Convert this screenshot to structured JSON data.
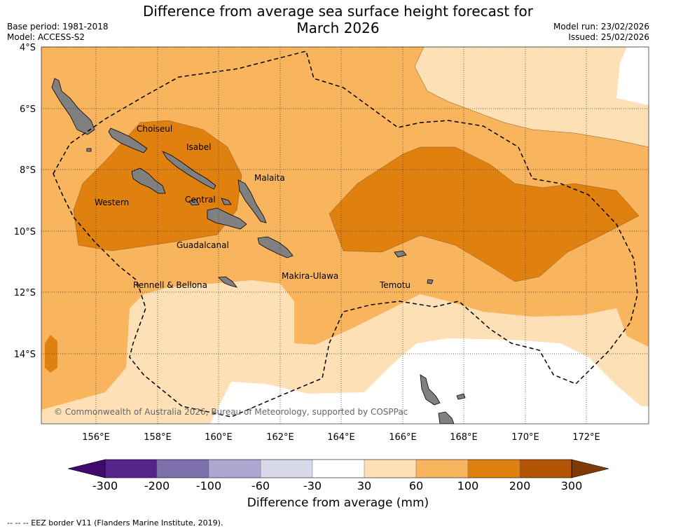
{
  "header": {
    "title_line1": "Difference from average sea surface height forecast for",
    "title_line2": "March 2026",
    "base_period": "Base period: 1981-2018",
    "model": "Model: ACCESS-S2",
    "model_run": "Model run: 23/02/2026",
    "issued": "Issued: 25/02/2026"
  },
  "map": {
    "lat_labels": [
      "4°S",
      "6°S",
      "8°S",
      "10°S",
      "12°S",
      "14°S"
    ],
    "lon_labels": [
      "156°E",
      "158°E",
      "160°E",
      "162°E",
      "164°E",
      "166°E",
      "168°E",
      "170°E",
      "172°E"
    ],
    "provinces": [
      "Choiseul",
      "Isabel",
      "Malaita",
      "Western",
      "Central",
      "Guadalcanal",
      "Rennell & Bellona",
      "Makira-Ulawa",
      "Temotu"
    ],
    "copyright": "© Commonwealth of Australia 2026, Bureau of Meteorology, supported by COSPPac"
  },
  "colorbar": {
    "ticks": [
      "-300",
      "-200",
      "-100",
      "-60",
      "-30",
      "30",
      "60",
      "100",
      "200",
      "300"
    ],
    "colors": [
      "#3f0a6b",
      "#54248b",
      "#7e6fad",
      "#aea6d0",
      "#d9d9ec",
      "#ffffff",
      "#fde0b6",
      "#f9b45e",
      "#e0810f",
      "#b35505",
      "#7f3a06"
    ],
    "label": "Difference from average (mm)"
  },
  "colors": {
    "level_30_60": "#fde0b6",
    "level_60_100": "#f9b45e",
    "level_100_200": "#e0810f",
    "level_200_300": "#b35505",
    "land": "#808080"
  },
  "footnote": "--  --  -- EEZ border V11 (Flanders Marine Institute, 2019)."
}
